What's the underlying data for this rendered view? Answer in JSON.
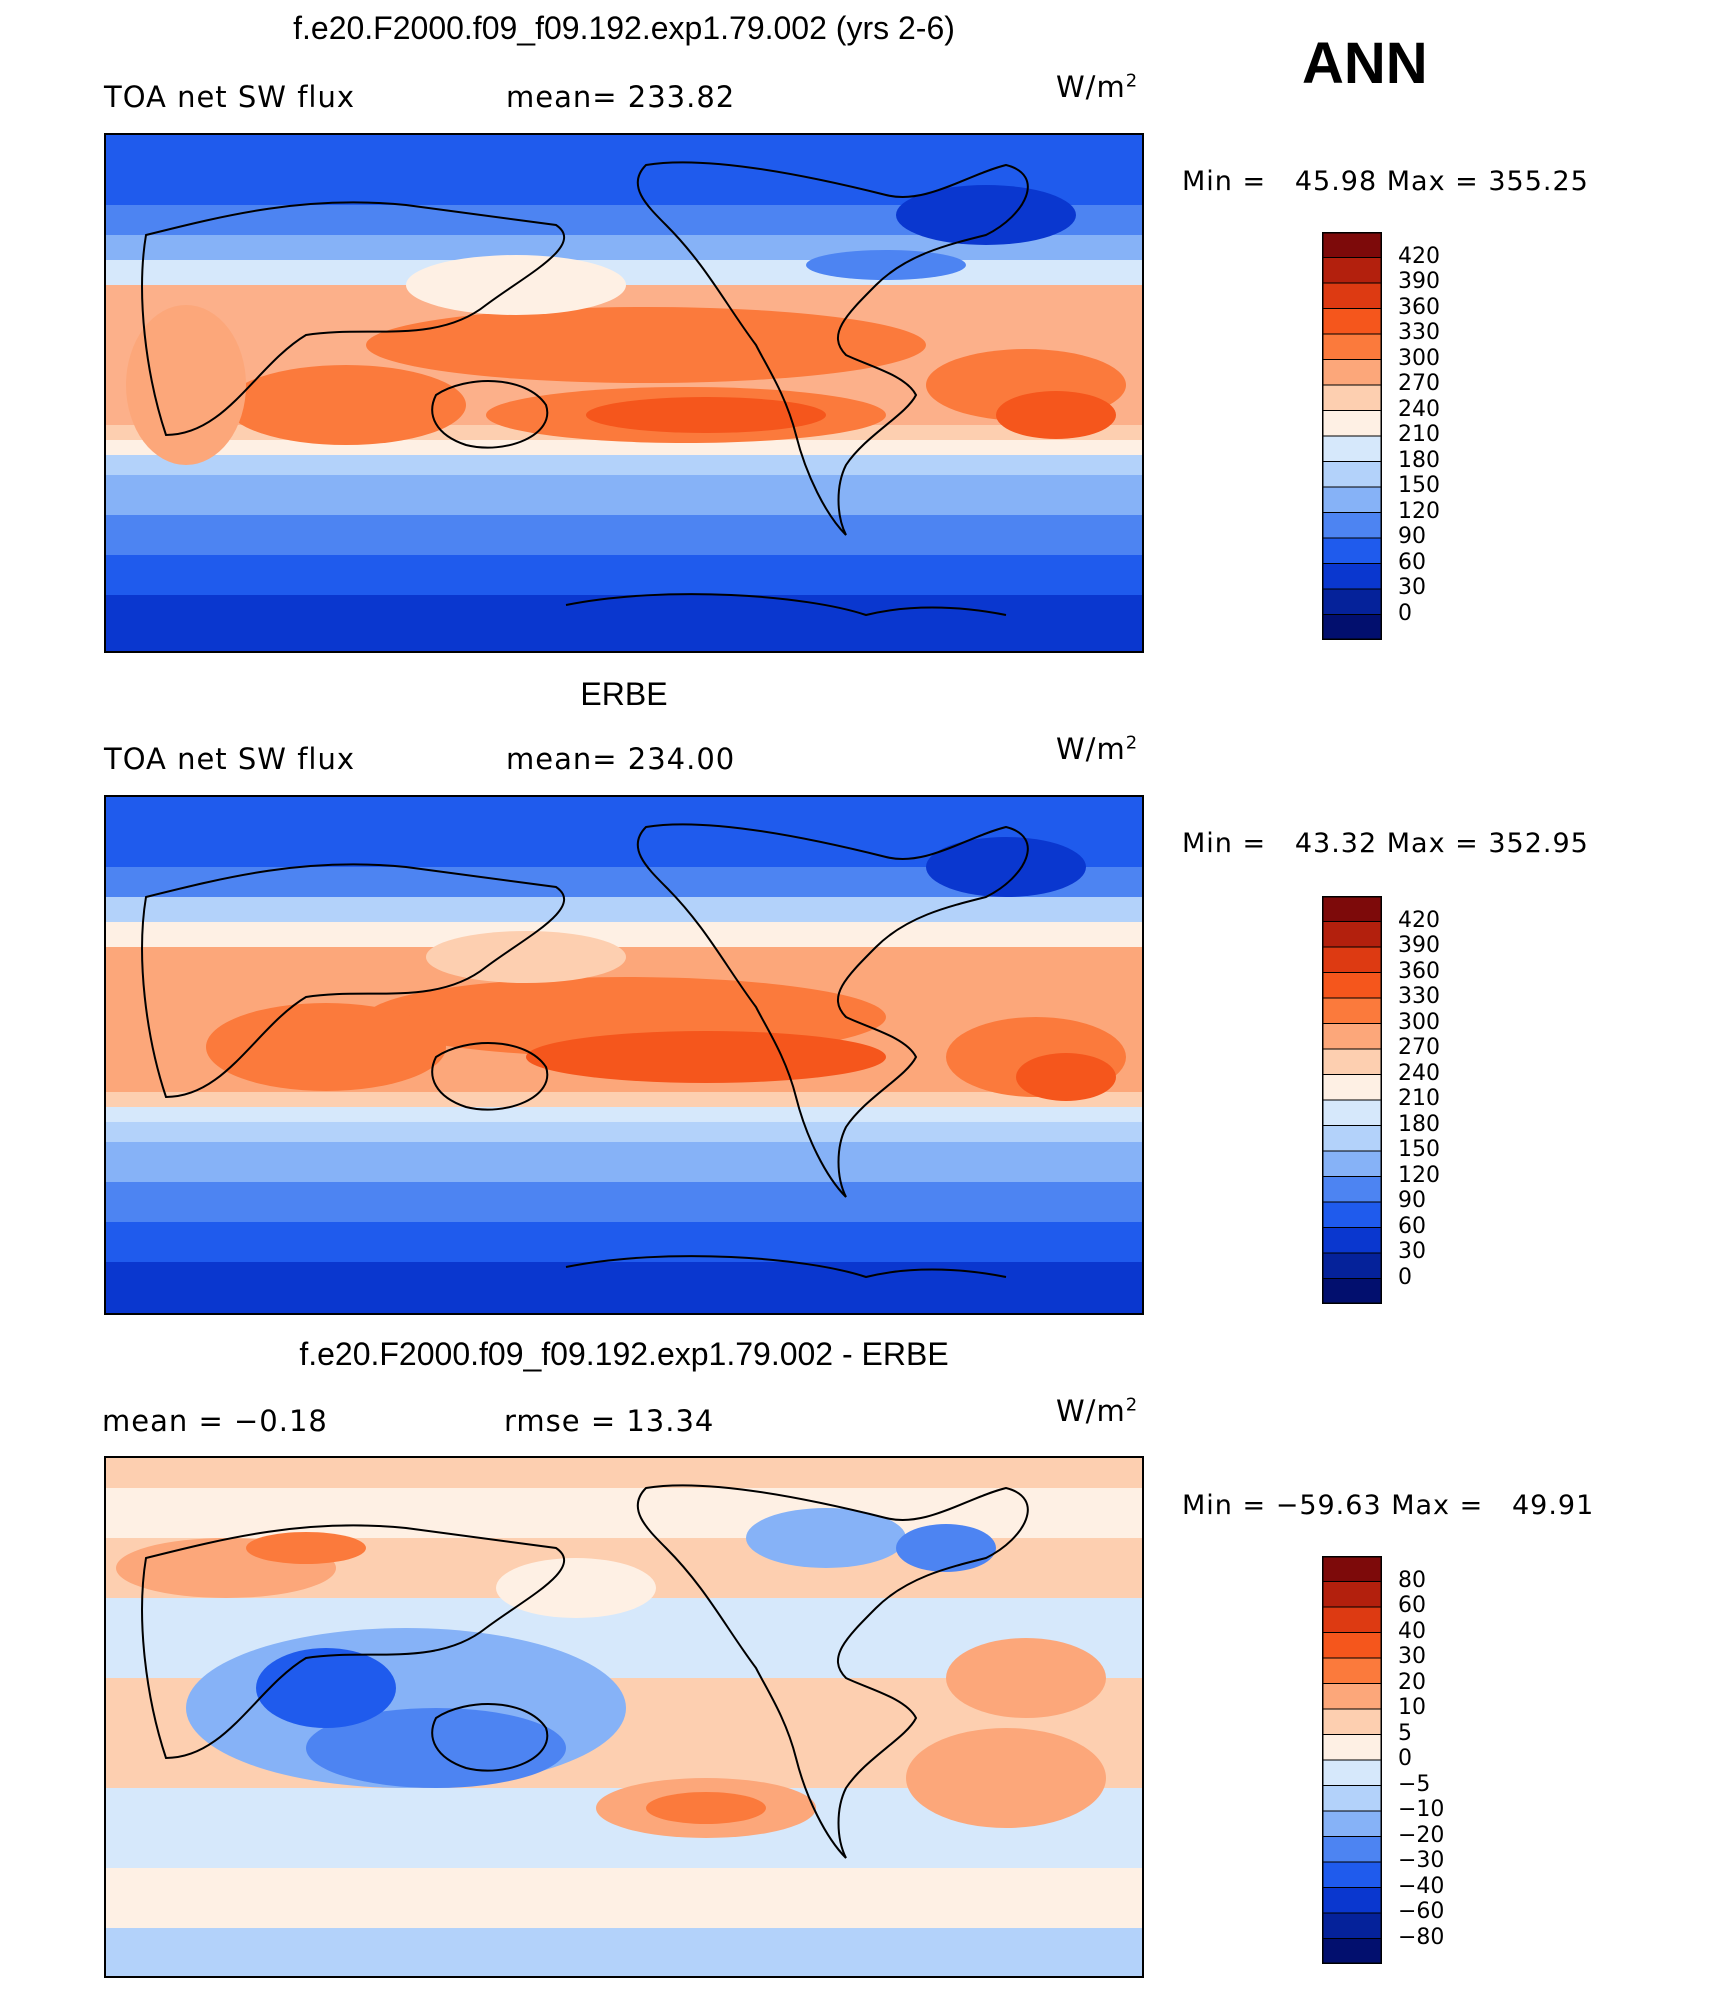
{
  "season_label": "ANN",
  "units_base": "W/m",
  "units_exp": "2",
  "panels": [
    {
      "id": "model",
      "title": "f.e20.F2000.f09_f09.192.exp1.79.002 (yrs 2-6)",
      "left_label": "TOA net SW flux",
      "right_label": "mean= 233.82",
      "stats": "Min =   45.98 Max = 355.25",
      "colorbar_labels": [
        "420",
        "390",
        "360",
        "330",
        "300",
        "270",
        "240",
        "210",
        "180",
        "150",
        "120",
        "90",
        "60",
        "30",
        "0"
      ],
      "colorbar_colors": [
        "#7d0a0a",
        "#b3200d",
        "#dd3a12",
        "#f5561c",
        "#fb7a3c",
        "#fca77a",
        "#fdcfb0",
        "#fef0e4",
        "#d6e8fb",
        "#b3d2fa",
        "#86b2f7",
        "#4d84f2",
        "#1f5bed",
        "#0a37cf",
        "#05229a",
        "#020f6e"
      ]
    },
    {
      "id": "obs",
      "title": "ERBE",
      "left_label": "TOA net SW flux",
      "right_label": "mean= 234.00",
      "stats": "Min =   43.32 Max = 352.95",
      "colorbar_labels": [
        "420",
        "390",
        "360",
        "330",
        "300",
        "270",
        "240",
        "210",
        "180",
        "150",
        "120",
        "90",
        "60",
        "30",
        "0"
      ],
      "colorbar_colors": [
        "#7d0a0a",
        "#b3200d",
        "#dd3a12",
        "#f5561c",
        "#fb7a3c",
        "#fca77a",
        "#fdcfb0",
        "#fef0e4",
        "#d6e8fb",
        "#b3d2fa",
        "#86b2f7",
        "#4d84f2",
        "#1f5bed",
        "#0a37cf",
        "#05229a",
        "#020f6e"
      ]
    },
    {
      "id": "diff",
      "title": "f.e20.F2000.f09_f09.192.exp1.79.002 - ERBE",
      "left_label": "mean =   −0.18",
      "right_label": "rmse =   13.34",
      "stats": "Min = −59.63 Max =   49.91",
      "colorbar_labels": [
        "80",
        "60",
        "40",
        "30",
        "20",
        "10",
        "5",
        "0",
        "−5",
        "−10",
        "−20",
        "−30",
        "−40",
        "−60",
        "−80"
      ],
      "colorbar_colors": [
        "#7d0a0a",
        "#b3200d",
        "#dd3a12",
        "#f5561c",
        "#fb7a3c",
        "#fca77a",
        "#fdcfb0",
        "#fef0e4",
        "#d6e8fb",
        "#b3d2fa",
        "#86b2f7",
        "#4d84f2",
        "#1f5bed",
        "#0a37cf",
        "#05229a",
        "#020f6e"
      ]
    }
  ]
}
